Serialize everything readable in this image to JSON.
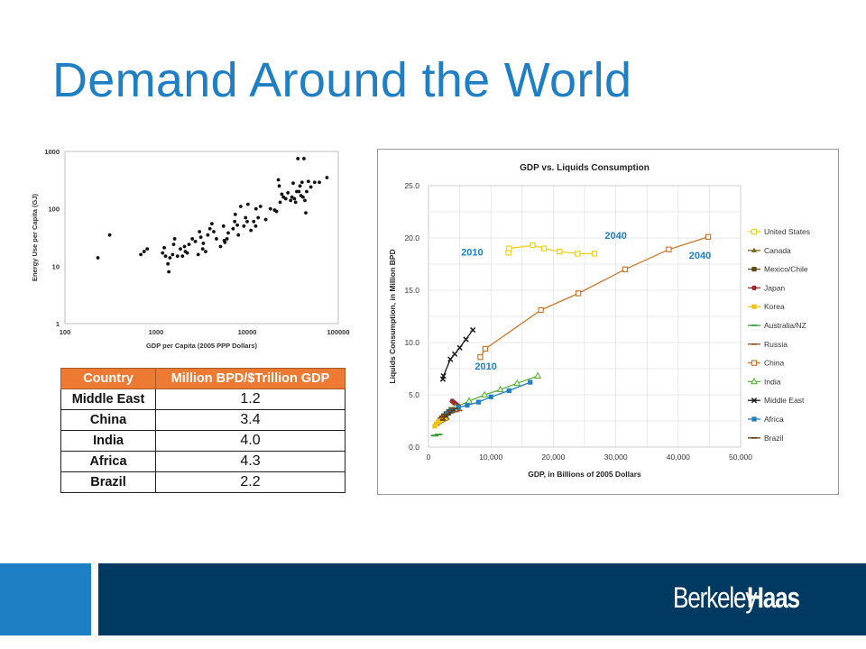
{
  "slide": {
    "title": "Demand Around the World"
  },
  "brand": {
    "word1": "Berkeley",
    "word2": "Haas"
  },
  "table": {
    "headers": [
      "Country",
      "Million BPD/$Trillion GDP"
    ],
    "rows": [
      [
        "Middle East",
        "1.2"
      ],
      [
        "China",
        "3.4"
      ],
      [
        "India",
        "4.0"
      ],
      [
        "Africa",
        "4.3"
      ],
      [
        "Brazil",
        "2.2"
      ]
    ]
  },
  "colors": {
    "title": "#1f7fc4",
    "header": "#ec7a33",
    "footer_dark": "#003a63",
    "footer_blue": "#1f7fc4"
  },
  "chart_data": [
    {
      "type": "scatter",
      "title": "",
      "xlabel": "GDP per Capita (2005 PPP Dollars)",
      "ylabel": "Energy Use per Capita (GJ)",
      "xscale": "log",
      "yscale": "log",
      "xlim": [
        100,
        100000
      ],
      "ylim": [
        1,
        1000
      ],
      "xticks": [
        "100",
        "1000",
        "10000",
        "100000"
      ],
      "yticks": [
        "1",
        "10",
        "100",
        "1000"
      ],
      "grid": false,
      "points": [
        [
          230,
          14
        ],
        [
          310,
          35
        ],
        [
          680,
          16
        ],
        [
          740,
          18
        ],
        [
          800,
          20
        ],
        [
          1180,
          17
        ],
        [
          1230,
          21
        ],
        [
          1270,
          15
        ],
        [
          1350,
          11
        ],
        [
          1380,
          8
        ],
        [
          1420,
          14
        ],
        [
          1520,
          16
        ],
        [
          1560,
          24
        ],
        [
          1600,
          30
        ],
        [
          1720,
          15
        ],
        [
          1850,
          20
        ],
        [
          1950,
          15
        ],
        [
          2050,
          22
        ],
        [
          2100,
          18
        ],
        [
          2200,
          17
        ],
        [
          2300,
          24
        ],
        [
          2500,
          30
        ],
        [
          2700,
          27
        ],
        [
          2900,
          16
        ],
        [
          3000,
          40
        ],
        [
          3100,
          32
        ],
        [
          3250,
          20
        ],
        [
          3300,
          25
        ],
        [
          3500,
          18
        ],
        [
          3700,
          35
        ],
        [
          3900,
          45
        ],
        [
          4100,
          55
        ],
        [
          4300,
          40
        ],
        [
          4600,
          30
        ],
        [
          5100,
          22
        ],
        [
          5500,
          50
        ],
        [
          5600,
          28
        ],
        [
          5700,
          26
        ],
        [
          6000,
          30
        ],
        [
          6200,
          38
        ],
        [
          7000,
          45
        ],
        [
          7300,
          60
        ],
        [
          7400,
          80
        ],
        [
          7800,
          52
        ],
        [
          8000,
          35
        ],
        [
          8500,
          110
        ],
        [
          9200,
          50
        ],
        [
          9600,
          70
        ],
        [
          10000,
          60
        ],
        [
          10200,
          120
        ],
        [
          11000,
          42
        ],
        [
          11800,
          60
        ],
        [
          12400,
          50
        ],
        [
          12500,
          100
        ],
        [
          13200,
          70
        ],
        [
          14000,
          110
        ],
        [
          16000,
          65
        ],
        [
          18000,
          100
        ],
        [
          20000,
          95
        ],
        [
          21000,
          90
        ],
        [
          22000,
          320
        ],
        [
          22500,
          250
        ],
        [
          23000,
          130
        ],
        [
          24000,
          180
        ],
        [
          25000,
          160
        ],
        [
          26500,
          150
        ],
        [
          28000,
          190
        ],
        [
          30000,
          140
        ],
        [
          31000,
          160
        ],
        [
          32000,
          280
        ],
        [
          33000,
          150
        ],
        [
          34000,
          130
        ],
        [
          35000,
          200
        ],
        [
          36000,
          750
        ],
        [
          37000,
          200
        ],
        [
          38000,
          250
        ],
        [
          39000,
          170
        ],
        [
          40000,
          290
        ],
        [
          41000,
          160
        ],
        [
          42000,
          750
        ],
        [
          43000,
          140
        ],
        [
          44000,
          85
        ],
        [
          45000,
          200
        ],
        [
          47000,
          300
        ],
        [
          50000,
          240
        ],
        [
          55000,
          290
        ],
        [
          62000,
          290
        ],
        [
          75000,
          350
        ]
      ]
    },
    {
      "type": "line",
      "title": "GDP vs. Liquids Consumption",
      "xlabel": "GDP, in Billions of 2005 Dollars",
      "ylabel": "Liquids Consumption, in Million BPD",
      "xlim": [
        0,
        50000
      ],
      "ylim": [
        0,
        25
      ],
      "xticks": [
        "0",
        "10,000",
        "20,000",
        "30,000",
        "40,000",
        "50,000"
      ],
      "yticks": [
        "0.0",
        "5.0",
        "10.0",
        "15.0",
        "20.0",
        "25.0"
      ],
      "grid": true,
      "legend_position": "right",
      "annotations": [
        {
          "text": "2010",
          "x": 7000,
          "y": 18.3
        },
        {
          "text": "2040",
          "x": 30000,
          "y": 19.9
        },
        {
          "text": "2040",
          "x": 43500,
          "y": 18.0
        },
        {
          "text": "2010",
          "x": 9200,
          "y": 7.4
        }
      ],
      "series": [
        {
          "name": "United States",
          "color": "#f2d013",
          "marker": "square-open",
          "x": [
            12800,
            12900,
            16700,
            18500,
            21000,
            23900,
            26600
          ],
          "y": [
            18.6,
            19.0,
            19.3,
            19.0,
            18.7,
            18.5,
            18.5
          ]
        },
        {
          "name": "Canada",
          "color": "#7d6a1f",
          "marker": "triangle",
          "x": [
            1300,
            1500,
            1800,
            2100,
            2400,
            2700,
            3000
          ],
          "y": [
            2.2,
            2.3,
            2.4,
            2.5,
            2.6,
            2.7,
            2.8
          ]
        },
        {
          "name": "Mexico/Chile",
          "color": "#5c4a17",
          "marker": "square",
          "x": [
            1800,
            2100,
            2400,
            2800,
            3200,
            3600
          ],
          "y": [
            2.6,
            2.8,
            3.0,
            3.2,
            3.4,
            3.6
          ]
        },
        {
          "name": "Japan",
          "color": "#a12a2a",
          "marker": "circle",
          "x": [
            3800,
            4000,
            4200,
            4400,
            4600,
            4800
          ],
          "y": [
            4.4,
            4.3,
            4.2,
            4.1,
            4.0,
            3.9
          ]
        },
        {
          "name": "Korea",
          "color": "#f2c313",
          "marker": "square",
          "x": [
            1000,
            1200,
            1500,
            1800,
            2100,
            2400,
            2700
          ],
          "y": [
            2.0,
            2.2,
            2.4,
            2.5,
            2.6,
            2.7,
            2.8
          ]
        },
        {
          "name": "Australia/NZ",
          "color": "#3a9e3a",
          "marker": "dash",
          "x": [
            800,
            1000,
            1200,
            1400,
            1600,
            1800
          ],
          "y": [
            1.1,
            1.1,
            1.1,
            1.2,
            1.2,
            1.2
          ]
        },
        {
          "name": "Russia",
          "color": "#9c4a1f",
          "marker": "dash",
          "x": [
            2000,
            2600,
            3200,
            3800,
            4400,
            5000
          ],
          "y": [
            2.8,
            3.0,
            3.1,
            3.3,
            3.4,
            3.5
          ]
        },
        {
          "name": "China",
          "color": "#c9792d",
          "marker": "square-open",
          "x": [
            8300,
            9100,
            18000,
            24000,
            31500,
            38500,
            44800
          ],
          "y": [
            8.6,
            9.4,
            13.1,
            14.7,
            17.0,
            18.9,
            20.1
          ]
        },
        {
          "name": "India",
          "color": "#5bb33a",
          "marker": "triangle-open",
          "x": [
            4300,
            6500,
            9000,
            11500,
            14200,
            17500
          ],
          "y": [
            3.8,
            4.4,
            5.0,
            5.5,
            6.1,
            6.8
          ]
        },
        {
          "name": "Middle East",
          "color": "#1a1a1a",
          "marker": "x",
          "x": [
            2300,
            2400,
            3500,
            4200,
            5000,
            6000,
            7100
          ],
          "y": [
            6.5,
            6.8,
            8.4,
            8.9,
            9.5,
            10.3,
            11.2
          ]
        },
        {
          "name": "Africa",
          "color": "#1f7fc4",
          "marker": "square",
          "x": [
            3000,
            3800,
            4800,
            6200,
            8000,
            10000,
            12900,
            16300
          ],
          "y": [
            3.2,
            3.5,
            3.8,
            4.0,
            4.3,
            4.8,
            5.4,
            6.2
          ]
        },
        {
          "name": "Brazil",
          "color": "#5c3a17",
          "marker": "dash",
          "x": [
            2300,
            2700,
            3100,
            3500,
            3900,
            4300
          ],
          "y": [
            2.6,
            2.9,
            3.1,
            3.3,
            3.5,
            3.7
          ]
        }
      ]
    }
  ]
}
